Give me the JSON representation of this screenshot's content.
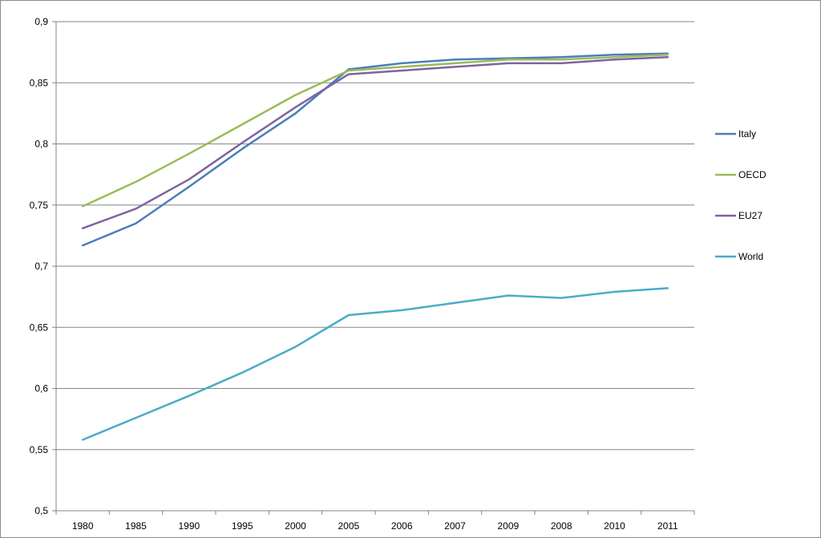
{
  "chart_data": {
    "type": "line",
    "title": "",
    "xlabel": "",
    "ylabel": "",
    "categories": [
      "1980",
      "1985",
      "1990",
      "1995",
      "2000",
      "2005",
      "2006",
      "2007",
      "2009",
      "2008",
      "2010",
      "2011"
    ],
    "ylim": [
      0.5,
      0.9
    ],
    "yticks": [
      "0,5",
      "0,55",
      "0,6",
      "0,65",
      "0,7",
      "0,75",
      "0,8",
      "0,85",
      "0,9"
    ],
    "grid": "horizontal major gridlines",
    "legend_position": "right",
    "series": [
      {
        "name": "Italy",
        "color": "#4a7ebb",
        "values": [
          0.717,
          0.735,
          0.765,
          0.796,
          0.825,
          0.861,
          0.866,
          0.869,
          0.87,
          0.871,
          0.873,
          0.874
        ]
      },
      {
        "name": "OECD",
        "color": "#9bbb59",
        "values": [
          0.749,
          0.769,
          0.792,
          0.816,
          0.84,
          0.86,
          0.863,
          0.866,
          0.869,
          0.869,
          0.871,
          0.873
        ]
      },
      {
        "name": "EU27",
        "color": "#7f63a0",
        "values": [
          0.731,
          0.747,
          0.771,
          0.801,
          0.83,
          0.857,
          0.86,
          0.863,
          0.866,
          0.866,
          0.869,
          0.871
        ]
      },
      {
        "name": "World",
        "color": "#4bacc6",
        "values": [
          0.558,
          0.576,
          0.594,
          0.613,
          0.634,
          0.66,
          0.664,
          0.67,
          0.676,
          0.674,
          0.679,
          0.682
        ]
      }
    ]
  }
}
